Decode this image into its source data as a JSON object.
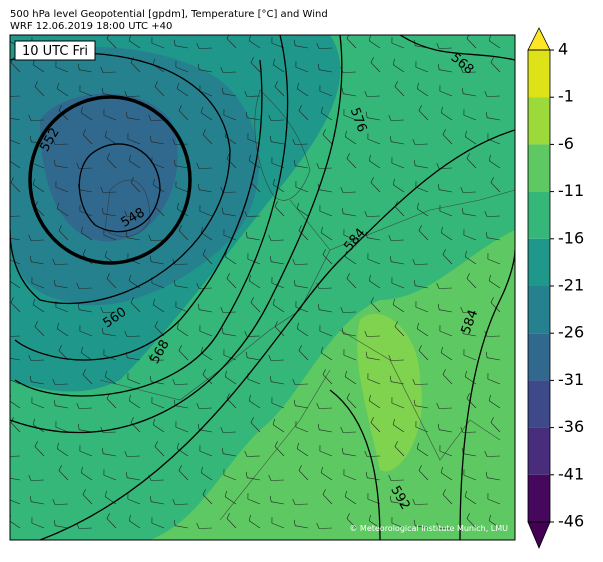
{
  "header": {
    "title": "500 hPa level Geopotential [gpdm], Temperature [°C] and Wind",
    "subtitle": "WRF 12.06.2019 18:00 UTC +40"
  },
  "map": {
    "time_label": "10 UTC Fri",
    "contour_labels": [
      "552",
      "548",
      "560",
      "568",
      "576",
      "584",
      "584",
      "592",
      "568"
    ],
    "credit": "© Meteorological Institute Munich, LMU"
  },
  "colorbar": {
    "ticks": [
      4,
      -1,
      -6,
      -11,
      -16,
      -21,
      -26,
      -31,
      -36,
      -41,
      -46
    ],
    "colors": [
      "#dde318",
      "#9cd93b",
      "#5ec962",
      "#35b779",
      "#1f988b",
      "#26818e",
      "#31688e",
      "#3e4989",
      "#472d7b",
      "#46085c"
    ],
    "extend_colors": [
      "#fde725",
      "#440154"
    ]
  }
}
